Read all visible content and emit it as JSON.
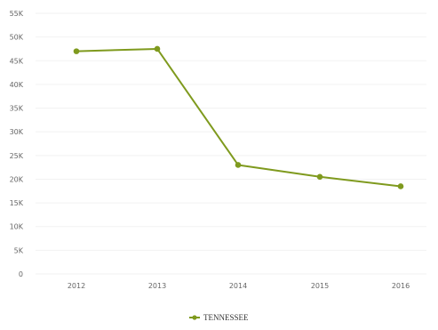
{
  "colors": {
    "series": "#7f9a1e",
    "grid": "#f2f2f2",
    "tick_text": "#666666"
  },
  "chart_data": {
    "type": "line",
    "title": "",
    "xlabel": "",
    "ylabel": "",
    "x": [
      "2012",
      "2013",
      "2014",
      "2015",
      "2016"
    ],
    "ylim": [
      0,
      55000
    ],
    "y_ticks": [
      {
        "value": 0,
        "label": "0"
      },
      {
        "value": 5000,
        "label": "5K"
      },
      {
        "value": 10000,
        "label": "10K"
      },
      {
        "value": 15000,
        "label": "15K"
      },
      {
        "value": 20000,
        "label": "20K"
      },
      {
        "value": 25000,
        "label": "25K"
      },
      {
        "value": 30000,
        "label": "30K"
      },
      {
        "value": 35000,
        "label": "35K"
      },
      {
        "value": 40000,
        "label": "40K"
      },
      {
        "value": 45000,
        "label": "45K"
      },
      {
        "value": 50000,
        "label": "50K"
      },
      {
        "value": 55000,
        "label": "55K"
      }
    ],
    "grid": true,
    "legend_position": "bottom-center",
    "series": [
      {
        "name": "TENNESSEE",
        "values": [
          47000,
          47500,
          23000,
          20500,
          18500
        ]
      }
    ]
  }
}
